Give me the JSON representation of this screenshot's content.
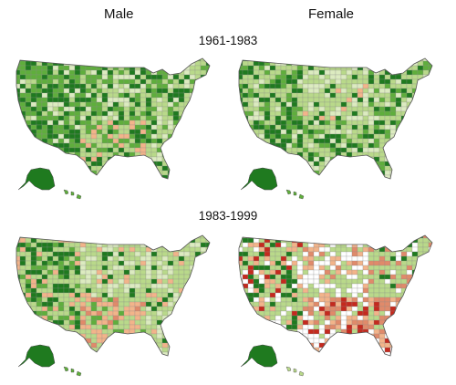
{
  "column_headers": [
    "Male",
    "Female"
  ],
  "periods": [
    "1961-1983",
    "1983-1999"
  ],
  "maps": [
    {
      "sex": "Male",
      "period": "1961-1983",
      "pattern": "green-dominant; dark green concentrated in west and scattered east; pale/peach cells in southwest and south"
    },
    {
      "sex": "Female",
      "period": "1961-1983",
      "pattern": "mostly light green; dark green in west, Texas and southeast; peach cells in plains"
    },
    {
      "sex": "Male",
      "period": "1983-1999",
      "pattern": "light green majority; dark green in west and coastal; peach/salmon clusters in central south"
    },
    {
      "sex": "Female",
      "period": "1983-1999",
      "pattern": "many white and salmon cells in central/south; red clusters in Appalachia and south; green in north and west"
    }
  ],
  "palette": {
    "dark_green": "#1f7a1f",
    "mid_green": "#5fae3c",
    "light_green": "#b9d98a",
    "pale_green": "#dcebc0",
    "peach": "#f2b48a",
    "salmon": "#e08a6a",
    "red": "#c42a1e",
    "white": "#ffffff",
    "border": "#8a8a8a"
  }
}
